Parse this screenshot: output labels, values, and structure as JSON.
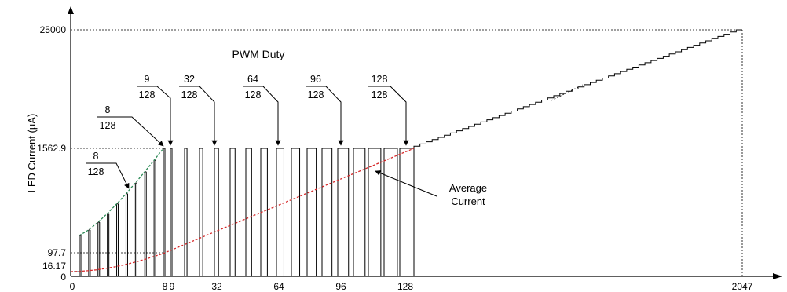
{
  "chart_data": {
    "type": "line",
    "title": "PWM Duty",
    "ylabel": "LED Current (µA)",
    "xlabel": "",
    "x_ticks": [
      "0",
      "8",
      "9",
      "32",
      "64",
      "96",
      "128",
      "2047"
    ],
    "y_ticks": [
      "0",
      "16.17",
      "97.7",
      "1562.9",
      "25000"
    ],
    "pwm_region": {
      "peak_current": 1562.9,
      "duty_denominator": 128,
      "pulses_duty_labels": [
        "8/128",
        "9/128",
        "32/128",
        "64/128",
        "96/128",
        "128/128"
      ]
    },
    "series": [
      {
        "name": "Average Current",
        "x": [
          0,
          8,
          16,
          32,
          48,
          64,
          80,
          96,
          112,
          128
        ],
        "y": [
          16.17,
          97.7,
          195,
          391,
          586,
          781,
          977,
          1172,
          1367,
          1562.9
        ]
      },
      {
        "name": "",
        "x": [
          128,
          400,
          800,
          1100,
          1500,
          1800,
          2047
        ],
        "y": [
          1562.9,
          3500,
          6500,
          9500,
          14500,
          19500,
          25000
        ]
      }
    ],
    "annotations": [
      {
        "label": [
          "8",
          "128"
        ],
        "points_to": "pulse rising edge"
      },
      {
        "label": [
          "8",
          "128"
        ],
        "points_to": "first full-current pulse"
      },
      {
        "label": [
          "9",
          "128"
        ],
        "points_to": "pulse at x=9"
      },
      {
        "label": [
          "32",
          "128"
        ],
        "points_to": "pulse at x=32"
      },
      {
        "label": [
          "64",
          "128"
        ],
        "points_to": "pulse at x=64"
      },
      {
        "label": [
          "96",
          "128"
        ],
        "points_to": "pulse at x=96"
      },
      {
        "label": [
          "128",
          "128"
        ],
        "points_to": "pulse at x=128"
      },
      {
        "label": [
          "Average",
          "Current"
        ],
        "points_to": "average current curve"
      }
    ],
    "colors": {
      "curve_green": "#2e8b57",
      "curve_red": "#d62728",
      "axis": "#000000"
    }
  }
}
